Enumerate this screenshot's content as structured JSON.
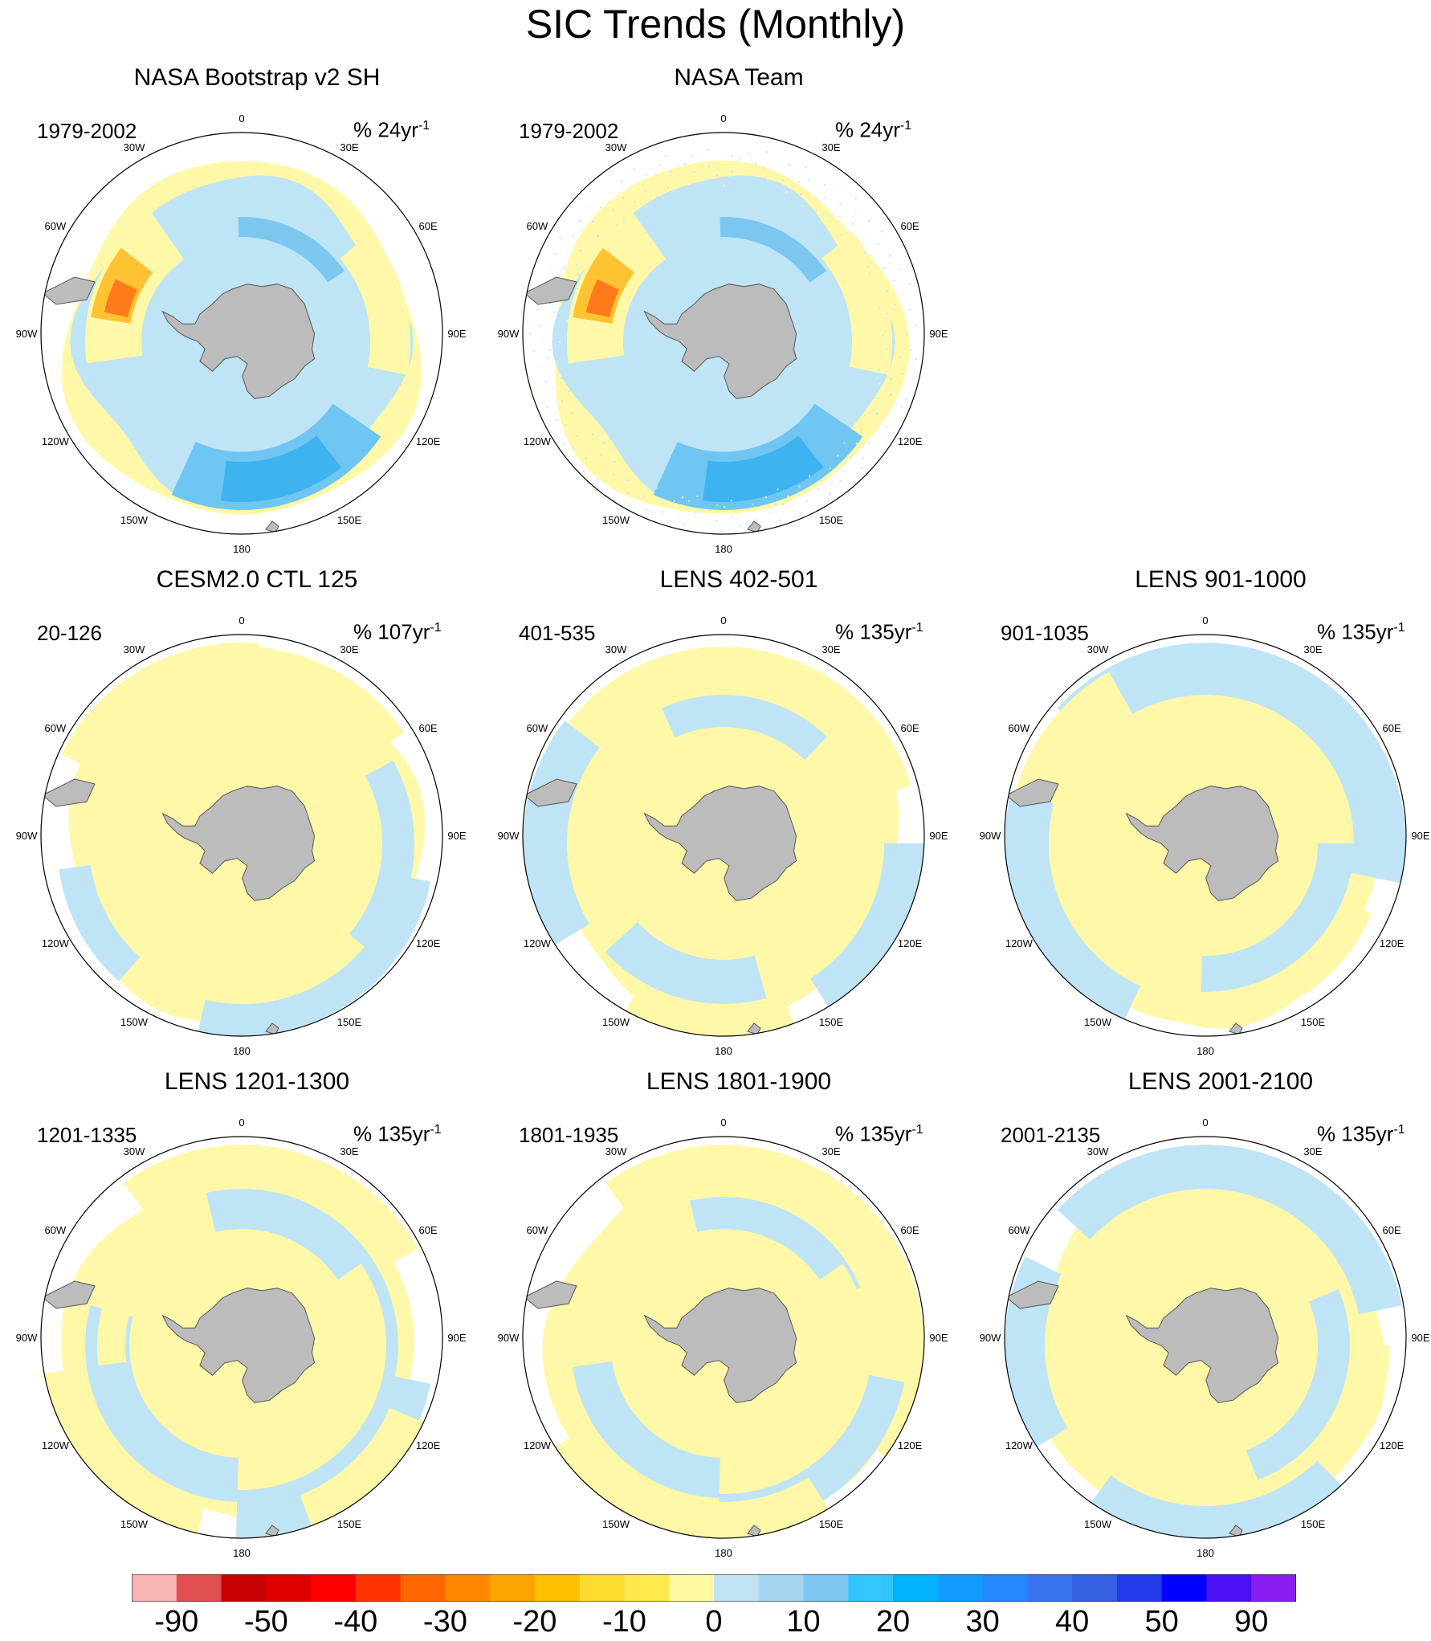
{
  "title": "SIC Trends (Monthly)",
  "longitude_labels": [
    "0",
    "30E",
    "60E",
    "90E",
    "120E",
    "150E",
    "180",
    "150W",
    "120W",
    "90W",
    "60W",
    "30W"
  ],
  "panels": [
    {
      "title": "NASA Bootstrap v2 SH",
      "period": "1979-2002",
      "units_prefix": "% 24yr",
      "units_exp": "-1",
      "pattern": "obs"
    },
    {
      "title": "NASA Team",
      "period": "1979-2002",
      "units_prefix": "% 24yr",
      "units_exp": "-1",
      "pattern": "obs2"
    },
    {
      "title": "CESM2.0 CTL 125",
      "period": "20-126",
      "units_prefix": "% 107yr",
      "units_exp": "-1",
      "pattern": "ctl"
    },
    {
      "title": "LENS 402-501",
      "period": "401-535",
      "units_prefix": "% 135yr",
      "units_exp": "-1",
      "pattern": "l402"
    },
    {
      "title": "LENS 901-1000",
      "period": "901-1035",
      "units_prefix": "% 135yr",
      "units_exp": "-1",
      "pattern": "l901"
    },
    {
      "title": "LENS 1201-1300",
      "period": "1201-1335",
      "units_prefix": "% 135yr",
      "units_exp": "-1",
      "pattern": "l1201"
    },
    {
      "title": "LENS 1801-1900",
      "period": "1801-1935",
      "units_prefix": "% 135yr",
      "units_exp": "-1",
      "pattern": "l1801"
    },
    {
      "title": "LENS 2001-2100",
      "period": "2001-2135",
      "units_prefix": "% 135yr",
      "units_exp": "-1",
      "pattern": "l2001"
    }
  ],
  "colorbar": {
    "colors": [
      "#f9b3b3",
      "#e05050",
      "#c80000",
      "#e00000",
      "#ff0000",
      "#ff3300",
      "#ff6600",
      "#ff8800",
      "#ffa500",
      "#ffc000",
      "#ffdb30",
      "#ffe94d",
      "#fffaa0",
      "#c0e4f4",
      "#a5d6f0",
      "#7cc7f0",
      "#33c5ff",
      "#00b2ff",
      "#139cff",
      "#2489ff",
      "#3a75f0",
      "#3560e0",
      "#1f3ae8",
      "#0000ff",
      "#4b10f5",
      "#8a1df0"
    ],
    "labels": [
      "-90",
      "-50",
      "-40",
      "-30",
      "-20",
      "-10",
      "0",
      "10",
      "20",
      "30",
      "40",
      "50",
      "90"
    ]
  },
  "colors": {
    "land": "#bcbcbc",
    "yellow": "#fff8a8",
    "blue": "#bfe4f6"
  }
}
